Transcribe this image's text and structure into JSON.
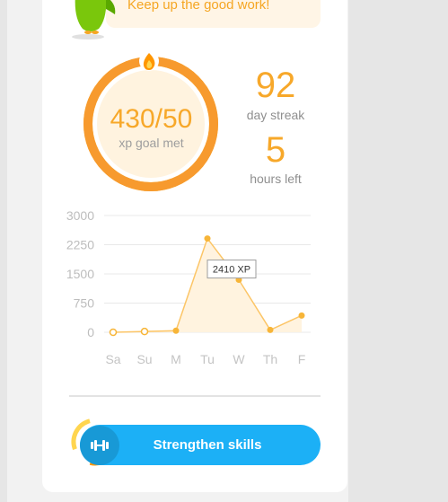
{
  "banner": {
    "message": "Keep up the good work!"
  },
  "xp_goal": {
    "value": "430/50",
    "label": "xp goal met",
    "fill_fraction": 1.0
  },
  "streak": {
    "value": "92",
    "label": "day streak"
  },
  "time_left": {
    "value": "5",
    "label": "hours left"
  },
  "chart_data": {
    "type": "line",
    "categories": [
      "Sa",
      "Su",
      "M",
      "Tu",
      "W",
      "Th",
      "F"
    ],
    "values": [
      0,
      20,
      40,
      2410,
      1350,
      60,
      430
    ],
    "yticks": [
      "3000",
      "2250",
      "1500",
      "750",
      "0"
    ],
    "ylim": [
      0,
      3000
    ],
    "tooltip": "2410 XP",
    "highlight_index": 3,
    "grid": true
  },
  "actions": {
    "strengthen_label": "Strengthen skills"
  },
  "icons": {
    "flame": "flame-icon",
    "dumbbell": "dumbbell-icon",
    "mascot": "owl-mascot"
  },
  "colors": {
    "accent": "#f7a82a",
    "button": "#1cb0f6",
    "banner_bg": "#fff5e6"
  }
}
